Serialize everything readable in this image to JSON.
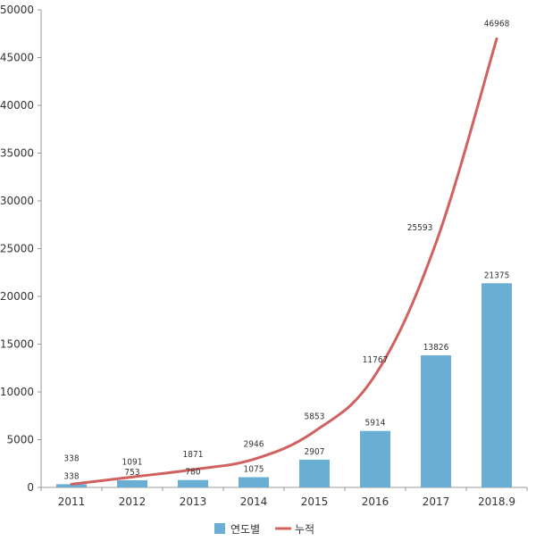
{
  "chart_data": {
    "type": "bar",
    "categories": [
      "2011",
      "2012",
      "2013",
      "2014",
      "2015",
      "2016",
      "2017",
      "2018.9"
    ],
    "ylim": [
      0,
      50000
    ],
    "yticks": [
      0,
      5000,
      10000,
      15000,
      20000,
      25000,
      30000,
      35000,
      40000,
      45000,
      50000
    ],
    "grid": false,
    "legend_position": "bottom",
    "series": [
      {
        "name": "연도별",
        "type": "bar",
        "color": "#6aafd3",
        "values": [
          338,
          753,
          780,
          1075,
          2907,
          5914,
          13826,
          21375
        ]
      },
      {
        "name": "누적",
        "type": "line",
        "color": "#d0615f",
        "values": [
          338,
          1091,
          1871,
          2946,
          5853,
          11767,
          25593,
          46968
        ]
      }
    ]
  }
}
